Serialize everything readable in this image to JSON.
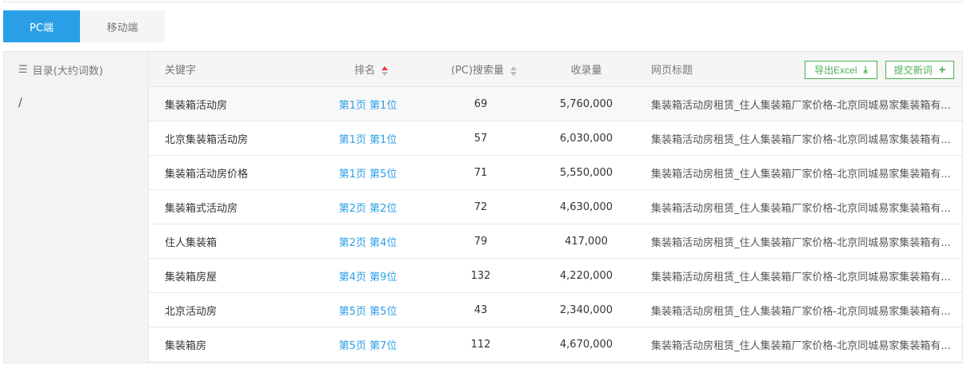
{
  "tabs": [
    {
      "label": "PC端",
      "active": true
    },
    {
      "label": "移动端",
      "active": false
    }
  ],
  "sidebar": {
    "header": "目录(大约词数)",
    "items": [
      "/"
    ]
  },
  "table": {
    "headers": {
      "keyword": "关键字",
      "rank": "排名",
      "search": "(PC)搜索量",
      "index": "收录量",
      "title": "网页标题"
    },
    "export_label": "导出Excel",
    "submit_label": "提交新词",
    "rows": [
      {
        "keyword": "集装箱活动房",
        "rank": "第1页 第1位",
        "search": "69",
        "index": "5,760,000",
        "title": "集装箱活动房租赁_住人集装箱厂家价格-北京同城易家集装箱有..."
      },
      {
        "keyword": "北京集装箱活动房",
        "rank": "第1页 第1位",
        "search": "57",
        "index": "6,030,000",
        "title": "集装箱活动房租赁_住人集装箱厂家价格-北京同城易家集装箱有..."
      },
      {
        "keyword": "集装箱活动房价格",
        "rank": "第1页 第5位",
        "search": "71",
        "index": "5,550,000",
        "title": "集装箱活动房租赁_住人集装箱厂家价格-北京同城易家集装箱有..."
      },
      {
        "keyword": "集装箱式活动房",
        "rank": "第2页 第2位",
        "search": "72",
        "index": "4,630,000",
        "title": "集装箱活动房租赁_住人集装箱厂家价格-北京同城易家集装箱有..."
      },
      {
        "keyword": "住人集装箱",
        "rank": "第2页 第4位",
        "search": "79",
        "index": "417,000",
        "title": "集装箱活动房租赁_住人集装箱厂家价格-北京同城易家集装箱有..."
      },
      {
        "keyword": "集装箱房屋",
        "rank": "第4页 第9位",
        "search": "132",
        "index": "4,220,000",
        "title": "集装箱活动房租赁_住人集装箱厂家价格-北京同城易家集装箱有..."
      },
      {
        "keyword": "北京活动房",
        "rank": "第5页 第5位",
        "search": "43",
        "index": "2,340,000",
        "title": "集装箱活动房租赁_住人集装箱厂家价格-北京同城易家集装箱有..."
      },
      {
        "keyword": "集装箱房",
        "rank": "第5页 第7位",
        "search": "112",
        "index": "4,670,000",
        "title": "集装箱活动房租赁_住人集装箱厂家价格-北京同城易家集装箱有..."
      }
    ]
  },
  "colors": {
    "accent": "#2b9fe6",
    "green": "#4caf50",
    "sort_active": "#f0353a"
  }
}
